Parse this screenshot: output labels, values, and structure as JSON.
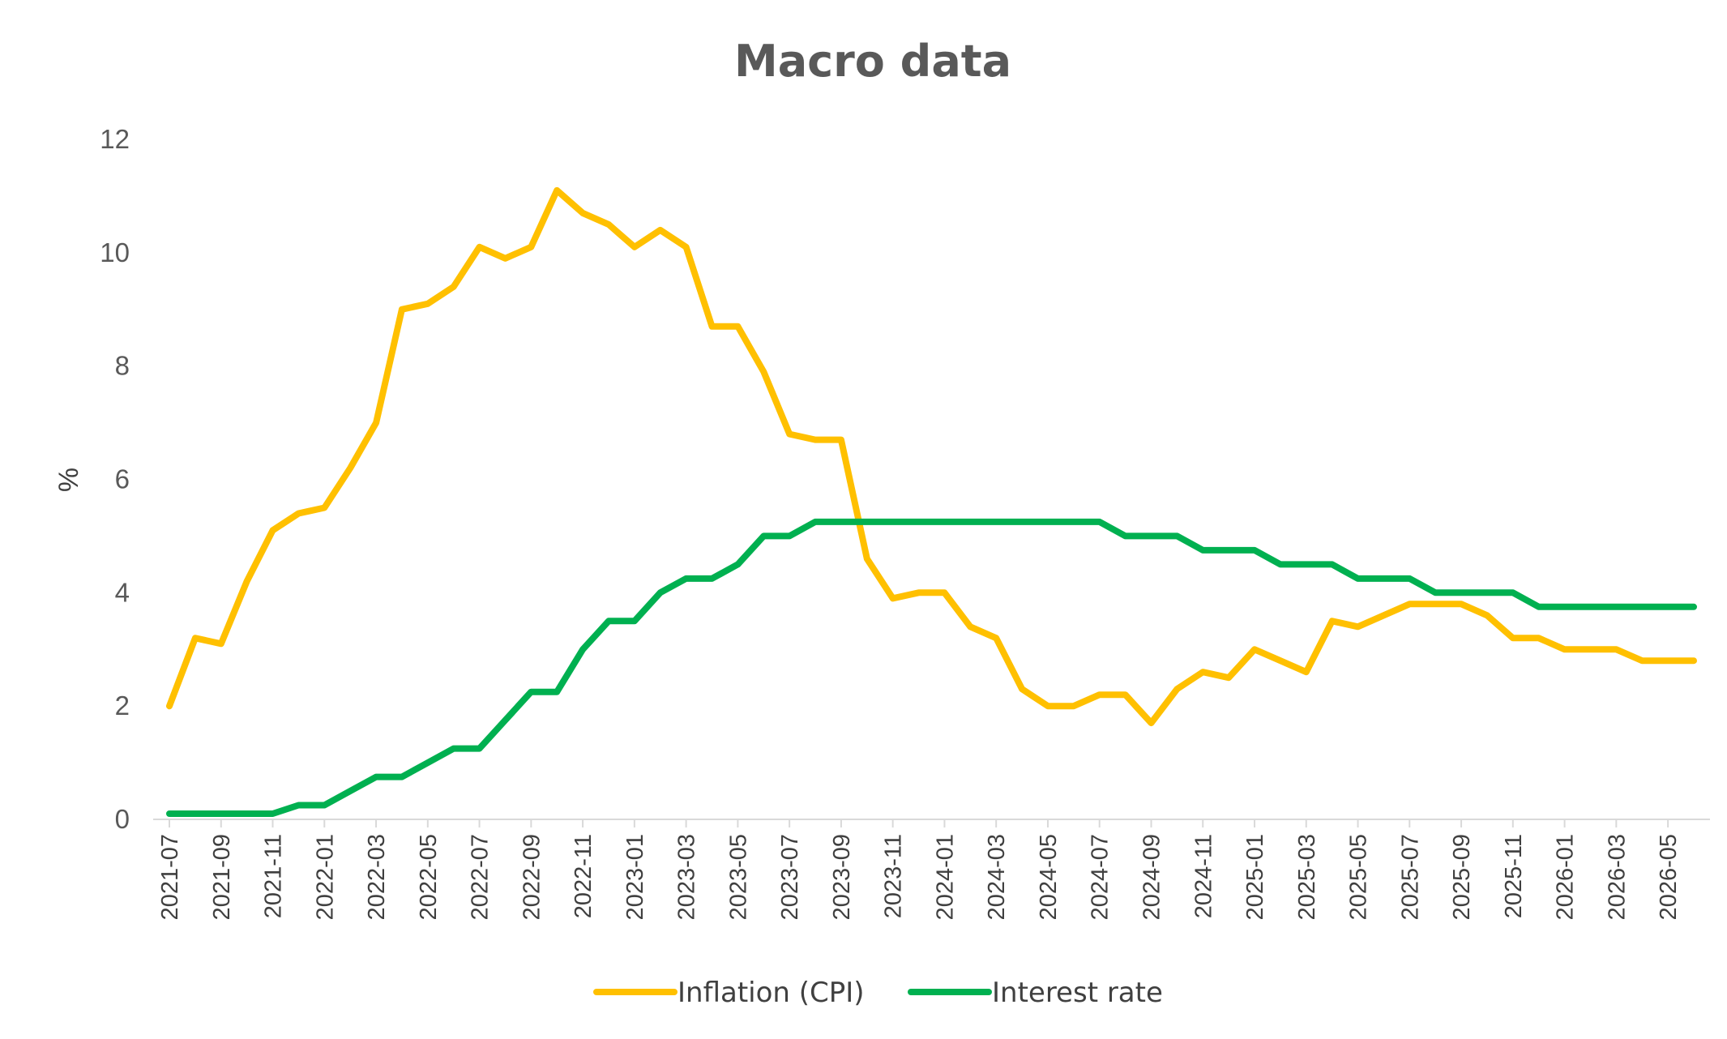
{
  "colors": {
    "inflation": "#FFC000",
    "interest": "#00B050",
    "axis": "#D9D9D9",
    "text": "#595959"
  },
  "chart_data": {
    "type": "line",
    "title": "Macro data",
    "xlabel": "",
    "ylabel": "%",
    "ylim": [
      0,
      12
    ],
    "yticks": [
      "0",
      "2",
      "4",
      "6",
      "8",
      "10",
      "12"
    ],
    "grid": false,
    "legend_position": "bottom",
    "x": [
      "2021-07",
      "2021-08",
      "2021-09",
      "2021-10",
      "2021-11",
      "2021-12",
      "2022-01",
      "2022-02",
      "2022-03",
      "2022-04",
      "2022-05",
      "2022-06",
      "2022-07",
      "2022-08",
      "2022-09",
      "2022-10",
      "2022-11",
      "2022-12",
      "2023-01",
      "2023-02",
      "2023-03",
      "2023-04",
      "2023-05",
      "2023-06",
      "2023-07",
      "2023-08",
      "2023-09",
      "2023-10",
      "2023-11",
      "2023-12",
      "2024-01",
      "2024-02",
      "2024-03",
      "2024-04",
      "2024-05",
      "2024-06",
      "2024-07",
      "2024-08",
      "2024-09",
      "2024-10",
      "2024-11",
      "2024-12",
      "2025-01",
      "2025-02",
      "2025-03",
      "2025-04",
      "2025-05",
      "2025-06",
      "2025-07",
      "2025-08",
      "2025-09",
      "2025-10",
      "2025-11",
      "2025-12",
      "2026-01",
      "2026-02",
      "2026-03",
      "2026-04",
      "2026-05",
      "2026-06"
    ],
    "xtick_labels": [
      "2021-07",
      "2021-09",
      "2021-11",
      "2022-01",
      "2022-03",
      "2022-05",
      "2022-07",
      "2022-09",
      "2022-11",
      "2023-01",
      "2023-03",
      "2023-05",
      "2023-07",
      "2023-09",
      "2023-11",
      "2024-01",
      "2024-03",
      "2024-05",
      "2024-07",
      "2024-09",
      "2024-11",
      "2025-01",
      "2025-03",
      "2025-05",
      "2025-07",
      "2025-09",
      "2025-11",
      "2026-01",
      "2026-03",
      "2026-05"
    ],
    "series": [
      {
        "name": "Inflation (CPI)",
        "color": "#FFC000",
        "values": [
          2.0,
          3.2,
          3.1,
          4.2,
          5.1,
          5.4,
          5.5,
          6.2,
          7.0,
          9.0,
          9.1,
          9.4,
          10.1,
          9.9,
          10.1,
          11.1,
          10.7,
          10.5,
          10.1,
          10.4,
          10.1,
          8.7,
          8.7,
          7.9,
          6.8,
          6.7,
          6.7,
          4.6,
          3.9,
          4.0,
          4.0,
          3.4,
          3.2,
          2.3,
          2.0,
          2.0,
          2.2,
          2.2,
          1.7,
          2.3,
          2.6,
          2.5,
          3.0,
          2.8,
          2.6,
          3.5,
          3.4,
          3.6,
          3.8,
          3.8,
          3.8,
          3.6,
          3.2,
          3.2,
          3.0,
          3.0,
          3.0,
          2.8,
          2.8,
          2.8
        ]
      },
      {
        "name": "Interest rate",
        "color": "#00B050",
        "values": [
          0.1,
          0.1,
          0.1,
          0.1,
          0.1,
          0.25,
          0.25,
          0.5,
          0.75,
          0.75,
          1.0,
          1.25,
          1.25,
          1.75,
          2.25,
          2.25,
          3.0,
          3.5,
          3.5,
          4.0,
          4.25,
          4.25,
          4.5,
          5.0,
          5.0,
          5.25,
          5.25,
          5.25,
          5.25,
          5.25,
          5.25,
          5.25,
          5.25,
          5.25,
          5.25,
          5.25,
          5.25,
          5.0,
          5.0,
          5.0,
          4.75,
          4.75,
          4.75,
          4.5,
          4.5,
          4.5,
          4.25,
          4.25,
          4.25,
          4.0,
          4.0,
          4.0,
          4.0,
          3.75,
          3.75,
          3.75,
          3.75,
          3.75,
          3.75,
          3.75
        ]
      }
    ]
  }
}
